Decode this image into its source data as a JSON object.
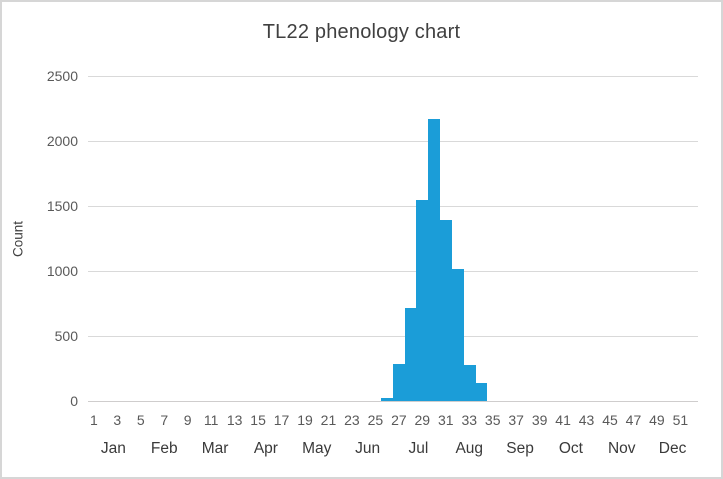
{
  "chart_data": {
    "type": "bar",
    "title": "TL22 phenology chart",
    "xlabel": "",
    "ylabel": "Count",
    "ylim": [
      0,
      2500
    ],
    "y_ticks": [
      0,
      500,
      1000,
      1500,
      2000,
      2500
    ],
    "grid": true,
    "legend": "none",
    "bar_gap_percent": 0,
    "x_axis": {
      "unit": "week-of-year",
      "week_range": [
        1,
        52
      ],
      "week_tick_labels": [
        "1",
        "3",
        "5",
        "7",
        "9",
        "11",
        "13",
        "15",
        "17",
        "19",
        "21",
        "23",
        "25",
        "27",
        "29",
        "31",
        "33",
        "35",
        "37",
        "39",
        "41",
        "43",
        "45",
        "47",
        "49",
        "51"
      ],
      "month_labels": [
        "Jan",
        "Feb",
        "Mar",
        "Apr",
        "May",
        "Jun",
        "Jul",
        "Aug",
        "Sep",
        "Oct",
        "Nov",
        "Dec"
      ]
    },
    "series": [
      {
        "name": "Count",
        "categories_weeks": [
          26,
          27,
          28,
          29,
          30,
          31,
          32,
          33,
          34
        ],
        "values": [
          25,
          285,
          715,
          1550,
          2170,
          1390,
          1015,
          280,
          140
        ]
      }
    ]
  },
  "style": {
    "bar_color": "#1b9dd8",
    "gridline_color": "#d9d9d9",
    "axis_line_color": "#cfcdcd",
    "title_color": "#404040",
    "tick_label_color": "#595959",
    "month_label_color": "#3a3a3a",
    "frame_border_color": "#d6d6d6",
    "background_color": "#ffffff"
  }
}
